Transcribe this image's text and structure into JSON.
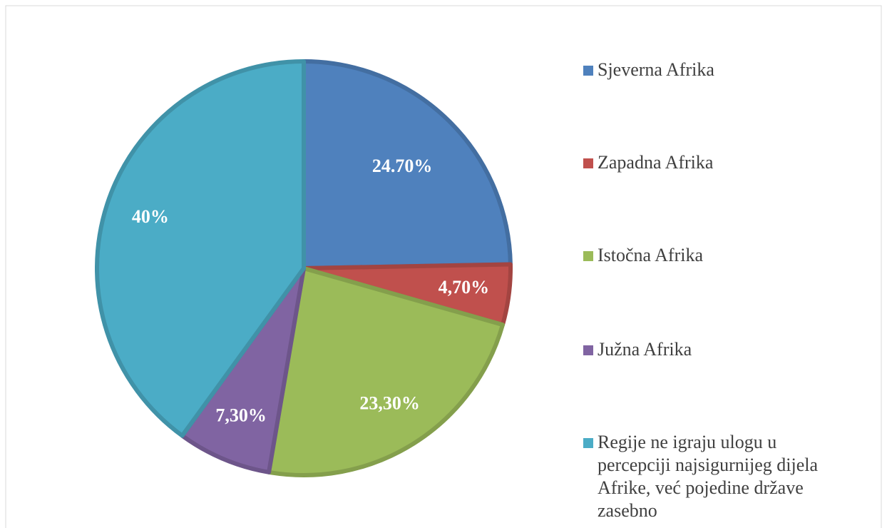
{
  "chart_data": {
    "type": "pie",
    "categories": [
      "Sjeverna Afrika",
      "Zapadna Afrika",
      "Istočna Afrika",
      "Južna Afrika",
      "Regije ne igraju ulogu u percepciji najsigurnijeg dijela Afrike, već pojedine države zasebno"
    ],
    "values": [
      24.7,
      4.7,
      23.3,
      7.3,
      40
    ],
    "value_labels": [
      "24.70%",
      "4,70%",
      "23,30%",
      "7,30%",
      "40%"
    ],
    "colors": [
      "#4f81bd",
      "#c0504d",
      "#9bbb59",
      "#8064a2",
      "#4bacc6"
    ],
    "legend": "right"
  }
}
